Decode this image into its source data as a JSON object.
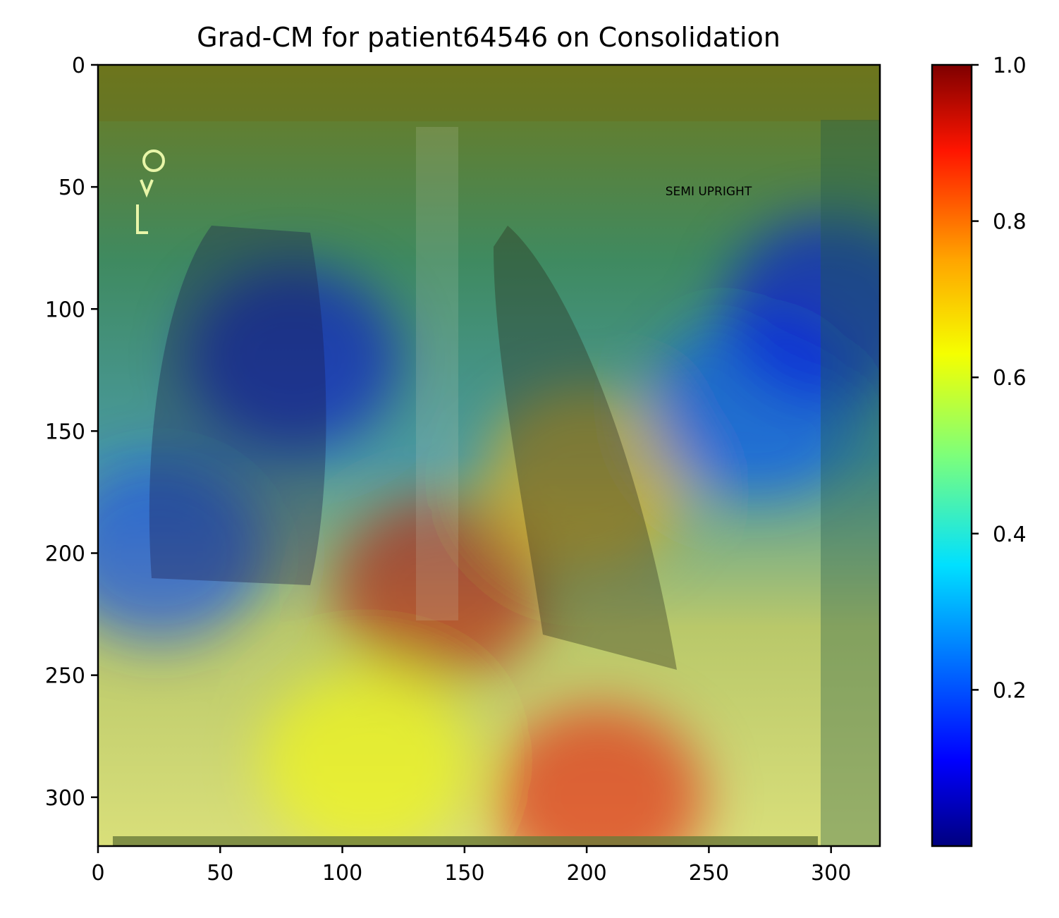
{
  "chart_data": {
    "type": "heatmap",
    "title": "Grad-CM for patient64546 on Consolidation",
    "xlim": [
      0,
      320
    ],
    "ylim": [
      320,
      0
    ],
    "x_ticks": [
      0,
      50,
      100,
      150,
      200,
      250,
      300
    ],
    "y_ticks": [
      0,
      50,
      100,
      150,
      200,
      250,
      300
    ],
    "x_tick_labels": [
      "0",
      "50",
      "100",
      "150",
      "200",
      "250",
      "300"
    ],
    "y_tick_labels": [
      "0",
      "50",
      "100",
      "150",
      "200",
      "250",
      "300"
    ],
    "image_annotation": "SEMI UPRIGHT",
    "colormap": "jet",
    "colorbar": {
      "range": [
        0.0,
        1.0
      ],
      "ticks": [
        0.2,
        0.4,
        0.6,
        0.8,
        1.0
      ],
      "tick_labels": [
        "0.2",
        "0.4",
        "0.6",
        "0.8",
        "1.0"
      ]
    },
    "overlay_blobs": [
      {
        "name": "high-activation-center",
        "x": 140,
        "y": 215,
        "value": 0.95
      },
      {
        "name": "high-activation-lower-right",
        "x": 205,
        "y": 300,
        "value": 0.9
      },
      {
        "name": "mid-activation-lower",
        "x": 110,
        "y": 285,
        "value": 0.62
      },
      {
        "name": "mid-activation-right-lung",
        "x": 200,
        "y": 170,
        "value": 0.7
      },
      {
        "name": "low-activation-left-lung",
        "x": 80,
        "y": 120,
        "value": 0.08
      },
      {
        "name": "low-activation-left-lateral",
        "x": 25,
        "y": 200,
        "value": 0.18
      },
      {
        "name": "low-activation-right-lateral",
        "x": 270,
        "y": 140,
        "value": 0.2
      },
      {
        "name": "low-activation-far-right",
        "x": 300,
        "y": 100,
        "value": 0.1
      }
    ]
  }
}
